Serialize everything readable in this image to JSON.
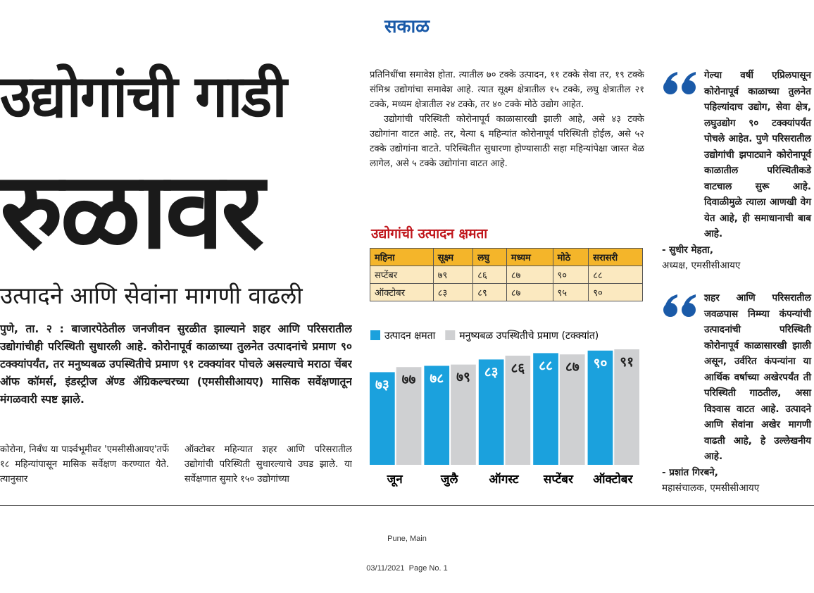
{
  "masthead": "सकाळ",
  "headline": {
    "lines": [
      "उद्योगांची गाडी",
      "रुळावर"
    ]
  },
  "subheadline": "उत्पादने आणि सेवांना मागणी वाढली",
  "lead": "पुणे, ता. २ : बाजारपेठेतील जनजीवन सुरळीत झाल्याने शहर आणि परिसरातील उद्योगांचीही परिस्थिती सुधारली आहे. कोरोनापूर्व काळाच्या तुलनेत उत्पादनांचे प्रमाण ९० टक्क्यांपर्यंत, तर मनुष्यबळ उपस्थितीचे प्रमाण ९१ टक्क्यांवर पोचले असल्याचे मराठा चेंबर ऑफ कॉमर्स, इंडस्ट्रीज ॲण्ड ॲग्रिकल्चरच्या (एमसीसीआयए) मासिक सर्वेक्षणातून मंगळवारी स्पष्ट झाले.",
  "body": {
    "column1": "कोरोना, निर्बंध या पार्श्वभूमीवर 'एमसीसीआयए'तर्फे १८ महिन्यांपासून मासिक सर्वेक्षण करण्यात येते. त्यानुसार",
    "column2": "ऑक्टोबर महिन्यात शहर आणि परिसरातील उद्योगांची परिस्थिती सुधारल्याचे उघड झाले. या सर्वेक्षणात सुमारे १५० उद्योगांच्या",
    "column3": [
      "प्रतिनिधींचा समावेश होता. त्यातील ७० टक्के उत्पादन, ११ टक्के सेवा तर, १९ टक्के संमिश्र उद्योगांचा समावेश आहे. त्यात सूक्ष्म क्षेत्रातील १५ टक्के, लघु क्षेत्रातील २१ टक्के, मध्यम क्षेत्रातील २४ टक्के, तर ४० टक्के मोठे उद्योग आहेत.",
      "उद्योगांची परिस्थिती कोरोनापूर्व काळासारखी झाली आहे, असे ४३ टक्के उद्योगांना वाटत आहे. तर, येत्या ६ महिन्यांत कोरोनापूर्व परिस्थिती होईल, असे ५२ टक्के उद्योगांना वाटते. परिस्थितीत सुधारणा होण्यासाठी सहा महिन्यांपेक्षा जास्त वेळ लागेल, असे ५ टक्के उद्योगांना वाटत आहे."
    ]
  },
  "table": {
    "title": "उद्योगांची उत्पादन क्षमता",
    "header": [
      "महिना",
      "सूक्ष्म",
      "लघु",
      "मध्यम",
      "मोठे",
      "सरासरी"
    ],
    "rows": [
      [
        "सप्टेंबर",
        "७९",
        "८६",
        "८७",
        "९०",
        "८८"
      ],
      [
        "ऑक्टोबर",
        "८३",
        "८९",
        "८७",
        "९५",
        "९०"
      ]
    ]
  },
  "chart_data": {
    "type": "bar",
    "categories": [
      "जून",
      "जुलै",
      "ऑगस्ट",
      "सप्टेंबर",
      "ऑक्टोबर"
    ],
    "series": [
      {
        "name": "उत्पादन क्षमता",
        "color": "#1ba1dd",
        "values": [
          73,
          78,
          83,
          88,
          90
        ],
        "value_labels": [
          "७३",
          "७८",
          "८३",
          "८८",
          "९०"
        ]
      },
      {
        "name": "मनुष्यबळ उपस्थितीचे प्रमाण (टक्क्यांत)",
        "color": "#cfd0d2",
        "values": [
          77,
          79,
          86,
          87,
          91
        ],
        "value_labels": [
          "७७",
          "७९",
          "८६",
          "८७",
          "९१"
        ]
      }
    ]
  },
  "quotes": [
    {
      "text": "गेल्या वर्षी एप्रिलपासून कोरोनापूर्व काळाच्या तुलनेत पहिल्यांदाच उद्योग, सेवा क्षेत्र, लघुउद्योग ९० टक्क्यांपर्यंत पोचले आहेत. पुणे परिसरातील उद्योगांची झपाट्याने कोरोनापूर्व काळातील परिस्थितीकडे वाटचाल सुरू आहे. दिवाळीमुळे त्याला आणखी वेग येत आहे, ही समाधानाची बाब आहे.",
      "author": "- सुधीर मेहता,",
      "role": "अध्यक्ष, एमसीसीआयए"
    },
    {
      "text": "शहर आणि परिसरातील जवळपास निम्म्या कंपन्यांची उत्पादनांची परिस्थिती कोरोनापूर्व काळासारखी झाली असून, उर्वरित कंपन्यांना या आर्थिक वर्षाच्या अखेरपर्यंत ती परिस्थिती गाठतील, असा विश्वास वाटत आहे. उत्पादने आणि सेवांना अखेर मागणी वाढती आहे, हे उल्लेखनीय आहे.",
      "author": "- प्रशांत गिरबने,",
      "role": "महासंचालक, एमसीसीआयए"
    }
  ],
  "footer": {
    "edition": "Pune, Main",
    "date_page": "03/11/2021  Page No. 1"
  }
}
